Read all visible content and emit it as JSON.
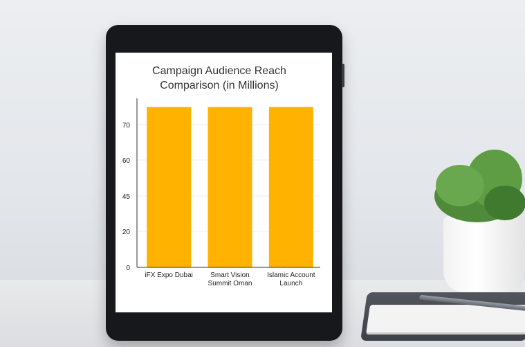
{
  "chart_data": {
    "type": "bar",
    "title_lines": [
      "Campaign Audience Reach",
      "Comparison (in Millions)"
    ],
    "categories": [
      [
        "iFX Expo Dubai"
      ],
      [
        "Smart Vision",
        "Summit Oman"
      ],
      [
        "Islamic Account",
        "Launch"
      ]
    ],
    "values": [
      75,
      75,
      75
    ],
    "y_ticks": [
      {
        "value": 0,
        "label": "0"
      },
      {
        "value": 20,
        "label": "20"
      },
      {
        "value": 45,
        "label": "45"
      },
      {
        "value": 60,
        "label": "60"
      },
      {
        "value": 70,
        "label": "70"
      }
    ],
    "ylim": [
      0,
      80
    ],
    "grid": true,
    "bar_color": "#ffb300"
  }
}
